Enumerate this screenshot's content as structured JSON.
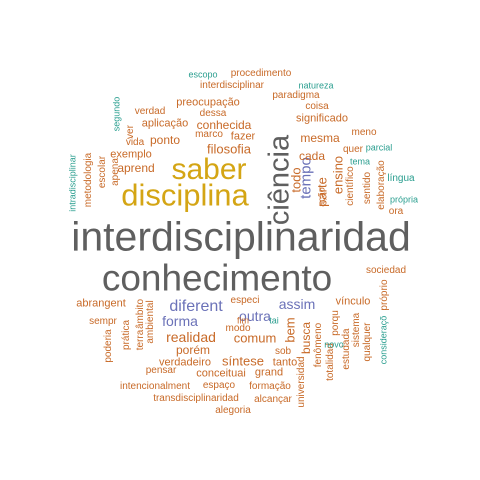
{
  "words": [
    {
      "text": "interdisciplinaridad"
    },
    {
      "text": "conhecimento"
    },
    {
      "text": "disciplina"
    },
    {
      "text": "saber"
    },
    {
      "text": "ciência"
    },
    {
      "text": "tempo"
    },
    {
      "text": "todo"
    },
    {
      "text": "parte"
    },
    {
      "text": "ensino"
    },
    {
      "text": "diferent"
    },
    {
      "text": "forma"
    },
    {
      "text": "outra"
    },
    {
      "text": "assim"
    },
    {
      "text": "realidad"
    },
    {
      "text": "comum"
    },
    {
      "text": "bem"
    },
    {
      "text": "busca"
    },
    {
      "text": "porém"
    },
    {
      "text": "síntese"
    },
    {
      "text": "filosofia"
    },
    {
      "text": "mesma"
    },
    {
      "text": "cada"
    },
    {
      "text": "aprend"
    },
    {
      "text": "exemplo"
    },
    {
      "text": "ponto"
    },
    {
      "text": "conhecida"
    },
    {
      "text": "preocupação"
    },
    {
      "text": "aplicação"
    },
    {
      "text": "marco"
    },
    {
      "text": "fazer"
    },
    {
      "text": "dessa"
    },
    {
      "text": "verdad"
    },
    {
      "text": "ver"
    },
    {
      "text": "vida"
    },
    {
      "text": "apena"
    },
    {
      "text": "escolar"
    },
    {
      "text": "metodologia"
    },
    {
      "text": "intradisciplinar"
    },
    {
      "text": "segundo"
    },
    {
      "text": "escopo"
    },
    {
      "text": "procedimento"
    },
    {
      "text": "interdisciplinar"
    },
    {
      "text": "paradigma"
    },
    {
      "text": "natureza"
    },
    {
      "text": "coisa"
    },
    {
      "text": "significado"
    },
    {
      "text": "meno"
    },
    {
      "text": "quer"
    },
    {
      "text": "parcial"
    },
    {
      "text": "tema"
    },
    {
      "text": "língua"
    },
    {
      "text": "própria"
    },
    {
      "text": "ora"
    },
    {
      "text": "elaboração"
    },
    {
      "text": "sentido"
    },
    {
      "text": "científico"
    },
    {
      "text": "ação"
    },
    {
      "text": "sociedad"
    },
    {
      "text": "vínculo"
    },
    {
      "text": "próprio"
    },
    {
      "text": "sistema"
    },
    {
      "text": "qualquer"
    },
    {
      "text": "consideraçõ"
    },
    {
      "text": "estudada"
    },
    {
      "text": "totalidad"
    },
    {
      "text": "porqu"
    },
    {
      "text": "fenômeno"
    },
    {
      "text": "universidad"
    },
    {
      "text": "novo"
    },
    {
      "text": "sob"
    },
    {
      "text": "tanto"
    },
    {
      "text": "grand"
    },
    {
      "text": "conceituai"
    },
    {
      "text": "verdadeiro"
    },
    {
      "text": "pensar"
    },
    {
      "text": "modo"
    },
    {
      "text": "fim"
    },
    {
      "text": "tai"
    },
    {
      "text": "especi"
    },
    {
      "text": "abrangent"
    },
    {
      "text": "sempr"
    },
    {
      "text": "poderia"
    },
    {
      "text": "prática"
    },
    {
      "text": "terra"
    },
    {
      "text": "âmbito"
    },
    {
      "text": "ambiental"
    },
    {
      "text": "intencionalment"
    },
    {
      "text": "espaço"
    },
    {
      "text": "formação"
    },
    {
      "text": "transdisciplinaridad"
    },
    {
      "text": "alcançar"
    },
    {
      "text": "alegoria"
    }
  ]
}
